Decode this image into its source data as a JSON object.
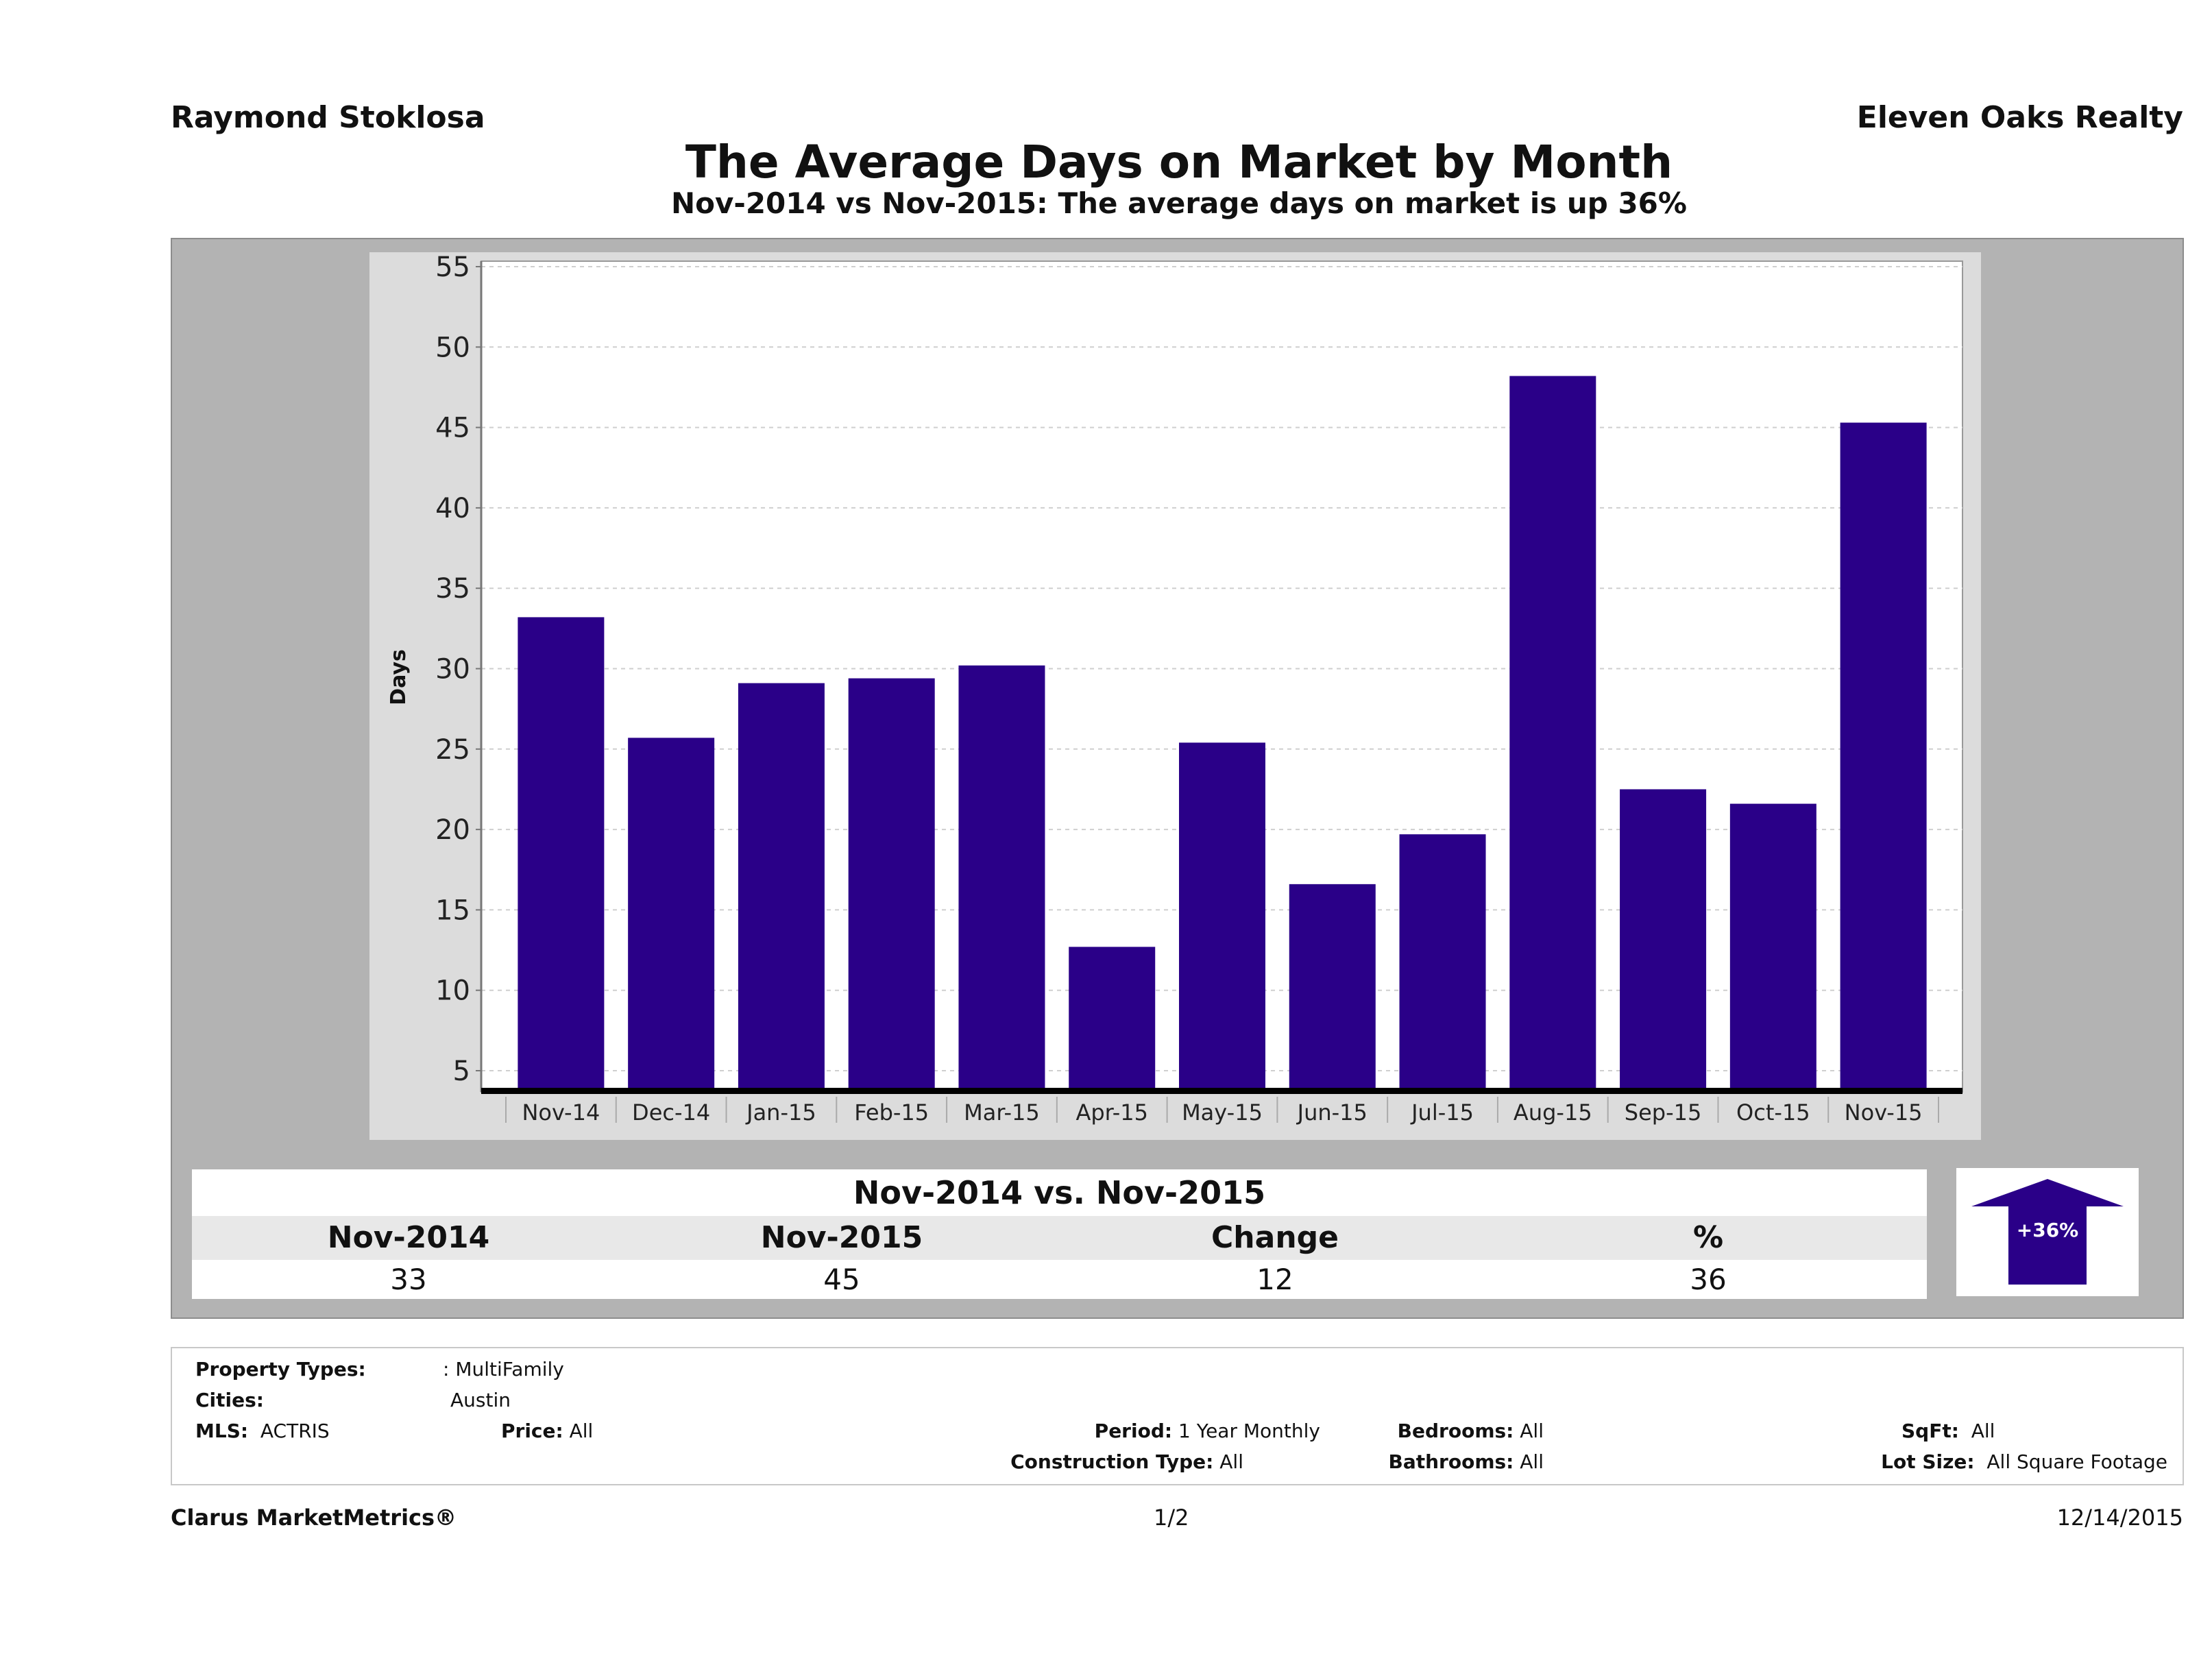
{
  "header": {
    "agent": "Raymond Stoklosa",
    "brokerage": "Eleven Oaks Realty",
    "title": "The Average Days on Market by Month",
    "subtitle": "Nov-2014 vs Nov-2015: The average days on market is up 36%"
  },
  "chart_data": {
    "type": "bar",
    "title": "The Average Days on Market by Month",
    "xlabel": "",
    "ylabel": "Days",
    "ylim": [
      3.5,
      55.5
    ],
    "yticks": [
      5,
      10,
      15,
      20,
      25,
      30,
      35,
      40,
      45,
      50,
      55
    ],
    "grid": true,
    "categories": [
      "Nov-14",
      "Dec-14",
      "Jan-15",
      "Feb-15",
      "Mar-15",
      "Apr-15",
      "May-15",
      "Jun-15",
      "Jul-15",
      "Aug-15",
      "Sep-15",
      "Oct-15",
      "Nov-15"
    ],
    "values": [
      33.2,
      25.7,
      29.1,
      29.4,
      30.2,
      12.7,
      25.4,
      16.6,
      19.7,
      48.2,
      22.5,
      21.6,
      45.3
    ],
    "color": "#2a0088"
  },
  "summary": {
    "title": "Nov-2014 vs. Nov-2015",
    "headers": [
      "Nov-2014",
      "Nov-2015",
      "Change",
      "%"
    ],
    "values": [
      "33",
      "45",
      "12",
      "36"
    ],
    "badge": "+36%",
    "badge_direction": "up-arrow-icon",
    "badge_color": "#2a0088"
  },
  "info": {
    "property_types_label": "Property Types:",
    "property_types_value": ": MultiFamily",
    "cities_label": "Cities:",
    "cities_value": "Austin",
    "mls_label": "MLS:",
    "mls_value": "ACTRIS",
    "price_label": "Price:",
    "price_value": "All",
    "period_label": "Period:",
    "period_value": "1 Year Monthly",
    "construction_label": "Construction Type:",
    "construction_value": "All",
    "bedrooms_label": "Bedrooms:",
    "bedrooms_value": "All",
    "bathrooms_label": "Bathrooms:",
    "bathrooms_value": "All",
    "sqft_label": "SqFt:",
    "sqft_value": "All",
    "lotsize_label": "Lot Size:",
    "lotsize_value": "All Square Footage"
  },
  "footer": {
    "brand": "Clarus MarketMetrics®",
    "page": "1/2",
    "date": "12/14/2015"
  }
}
